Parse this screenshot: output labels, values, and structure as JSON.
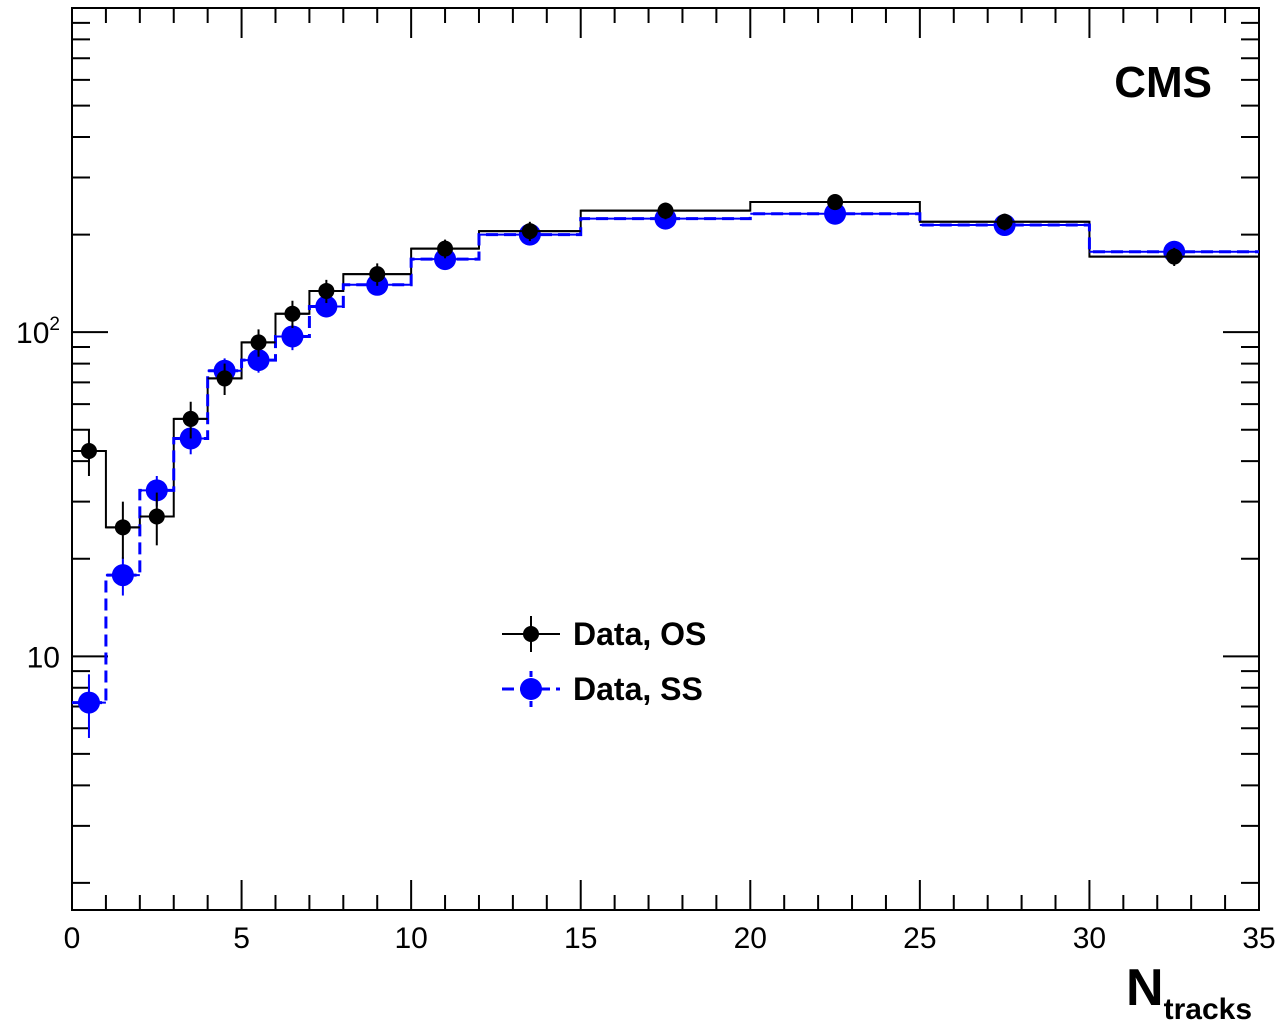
{
  "chart_data": {
    "type": "scatter",
    "annotation": "CMS",
    "xlabel": {
      "main": "N",
      "sub": "tracks"
    },
    "ylabel": "",
    "xlim": [
      0,
      35
    ],
    "ylim": [
      1.65,
      1000
    ],
    "yscale": "log",
    "grid": false,
    "legend_position": "center",
    "x_ticks": [
      0,
      5,
      10,
      15,
      20,
      25,
      30,
      35
    ],
    "y_ticks": [
      {
        "value": 10,
        "base": "10",
        "exp": ""
      },
      {
        "value": 100,
        "base": "10",
        "exp": "2"
      }
    ],
    "bins": [
      0,
      1,
      2,
      3,
      4,
      5,
      6,
      7,
      8,
      10,
      12,
      15,
      20,
      25,
      30,
      35
    ],
    "x": [
      0.5,
      1.5,
      2.5,
      3.5,
      4.5,
      5.5,
      6.5,
      7.5,
      9,
      11,
      13.5,
      17.5,
      22.5,
      27.5,
      32.5
    ],
    "series": [
      {
        "name": "Data, OS",
        "color": "#000000",
        "style": "solid",
        "values": [
          43,
          25,
          27,
          54,
          72,
          93,
          114,
          134,
          151,
          181,
          205,
          237,
          252,
          219,
          171
        ],
        "err_lo": [
          7,
          5,
          5,
          7,
          8,
          9,
          11,
          11,
          12,
          12,
          14,
          14,
          14,
          13,
          11
        ],
        "err_hi": [
          7,
          5,
          5,
          7,
          8,
          9,
          11,
          11,
          12,
          12,
          14,
          14,
          14,
          13,
          11
        ]
      },
      {
        "name": "Data, SS",
        "color": "#0000ff",
        "style": "dashed",
        "values": [
          7.2,
          17.8,
          32.5,
          47,
          76,
          82,
          97,
          120,
          140,
          168,
          200,
          224,
          232,
          214,
          177
        ],
        "err_lo": [
          1.6,
          2.4,
          3.5,
          5,
          7,
          7,
          9,
          9,
          10,
          11,
          12,
          13,
          13,
          13,
          11
        ],
        "err_hi": [
          1.6,
          2.4,
          3.5,
          5,
          7,
          7,
          9,
          9,
          10,
          11,
          12,
          13,
          13,
          13,
          11
        ]
      }
    ]
  }
}
